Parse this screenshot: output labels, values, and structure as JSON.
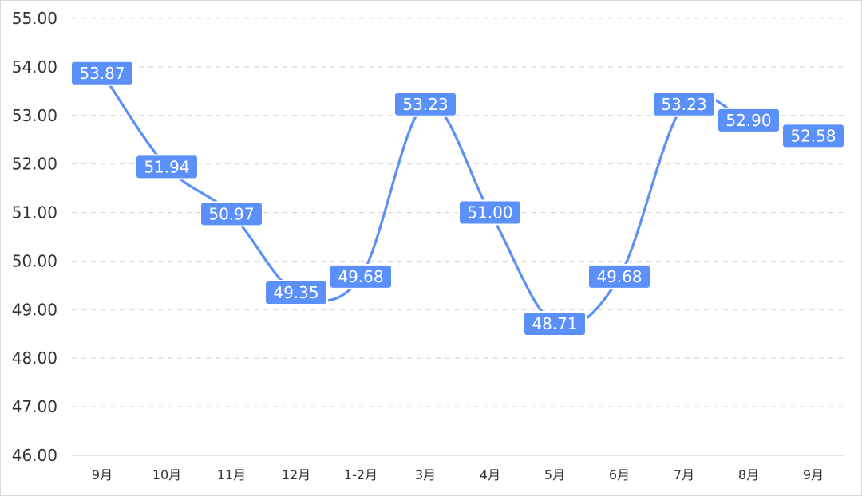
{
  "chart_data": {
    "type": "line",
    "categories": [
      "9月",
      "10月",
      "11月",
      "12月",
      "1-2月",
      "3月",
      "4月",
      "5月",
      "6月",
      "7月",
      "8月",
      "9月"
    ],
    "series": [
      {
        "values": [
          53.87,
          51.94,
          50.97,
          49.35,
          49.68,
          53.23,
          51.0,
          48.71,
          49.68,
          53.23,
          52.9,
          52.58
        ]
      }
    ],
    "ylim": [
      46,
      55
    ],
    "yticks": [
      "46.00",
      "47.00",
      "48.00",
      "49.00",
      "50.00",
      "51.00",
      "52.00",
      "53.00",
      "54.00",
      "55.00"
    ],
    "data_labels": [
      "53.87",
      "51.94",
      "50.97",
      "49.35",
      "49.68",
      "53.23",
      "51.00",
      "48.71",
      "49.68",
      "53.23",
      "52.90",
      "52.58"
    ],
    "grid": "horizontal-dashed",
    "line_style": "smooth",
    "colors": {
      "line": "#5b8ff9",
      "label_fill": "#5b8ff9",
      "grid": "#d9d9d9"
    }
  }
}
